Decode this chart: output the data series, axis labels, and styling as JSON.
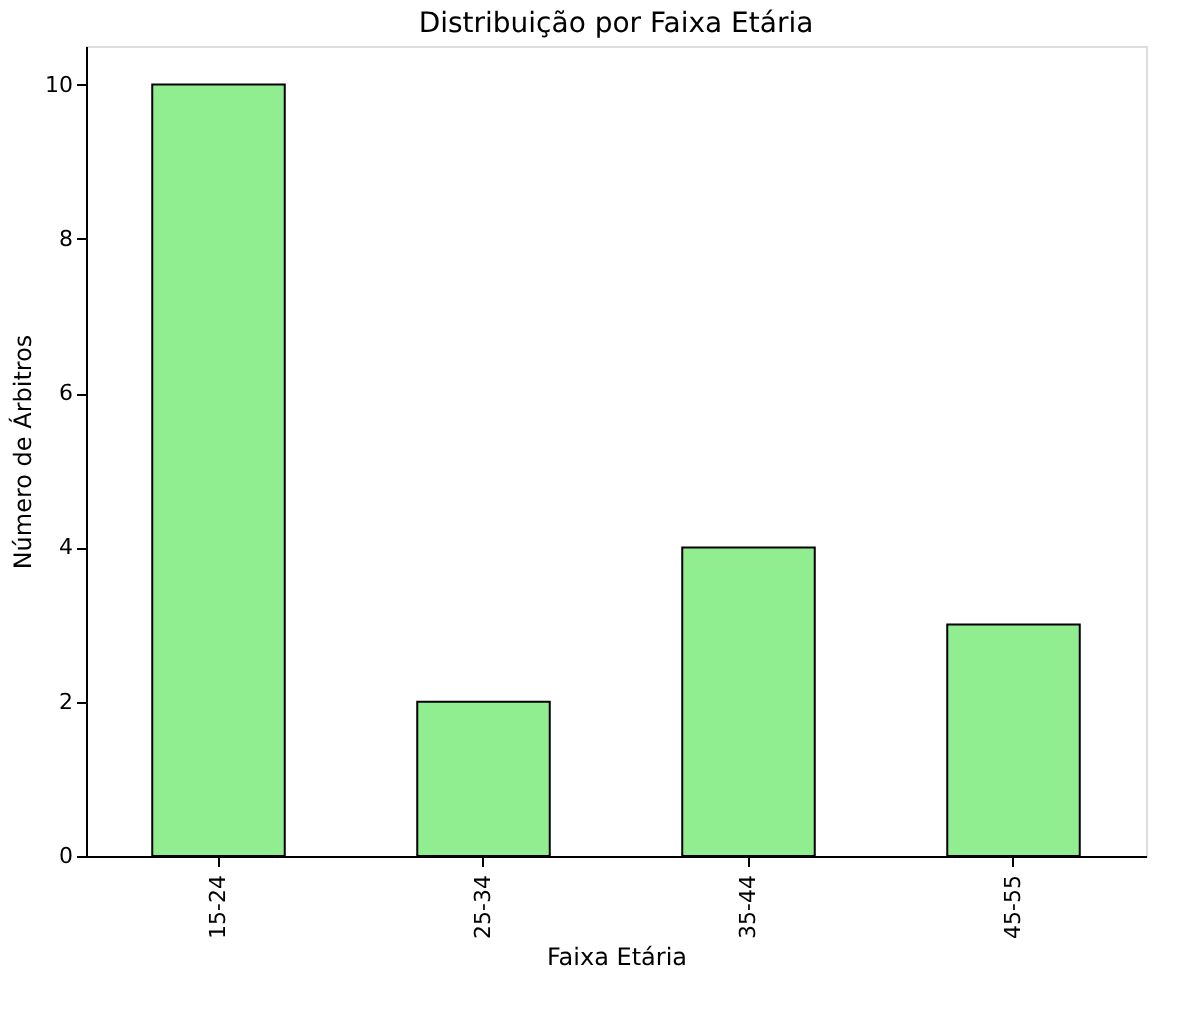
{
  "chart_data": {
    "type": "bar",
    "title": "Distribuição por Faixa Etária",
    "xlabel": "Faixa Etária",
    "ylabel": "Número de Árbitros",
    "categories": [
      "15-24",
      "25-34",
      "35-44",
      "45-55"
    ],
    "values": [
      10,
      2,
      4,
      3
    ],
    "color": "#90ee90",
    "ylim": [
      0,
      10.5
    ],
    "yticks": [
      0,
      2,
      4,
      6,
      8,
      10
    ],
    "grid": false
  }
}
